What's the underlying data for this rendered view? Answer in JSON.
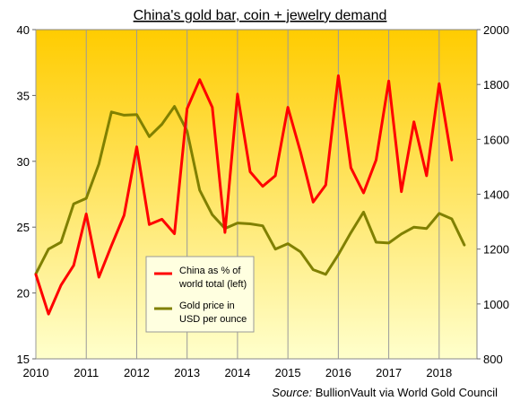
{
  "chart_data": {
    "type": "line",
    "title": "China's gold bar, coin + jewelry demand",
    "x_axis": {
      "ticks": [
        "2010",
        "2011",
        "2012",
        "2013",
        "2014",
        "2015",
        "2016",
        "2017",
        "2018"
      ],
      "range": [
        2010.0,
        2018.75
      ]
    },
    "y_left": {
      "range": [
        15,
        40
      ],
      "ticks": [
        "15",
        "20",
        "25",
        "30",
        "35",
        "40"
      ]
    },
    "y_right": {
      "range": [
        800,
        2000
      ],
      "ticks": [
        "800",
        "1000",
        "1200",
        "1400",
        "1600",
        "1800",
        "2000"
      ]
    },
    "series": [
      {
        "name": "China as % of world total (left)",
        "axis": "left",
        "color": "#ff0000",
        "x": [
          2010.0,
          2010.25,
          2010.5,
          2010.75,
          2011.0,
          2011.25,
          2011.5,
          2011.75,
          2012.0,
          2012.25,
          2012.5,
          2012.75,
          2013.0,
          2013.25,
          2013.5,
          2013.75,
          2014.0,
          2014.25,
          2014.5,
          2014.75,
          2015.0,
          2015.25,
          2015.5,
          2015.75,
          2016.0,
          2016.25,
          2016.5,
          2016.75,
          2017.0,
          2017.25,
          2017.5,
          2017.75,
          2018.0,
          2018.25
        ],
        "values": [
          21.4,
          18.4,
          20.6,
          22.1,
          26.0,
          21.2,
          23.6,
          25.9,
          31.1,
          25.2,
          25.6,
          24.5,
          34.0,
          36.2,
          34.1,
          24.6,
          35.1,
          29.2,
          28.1,
          28.9,
          34.1,
          30.7,
          26.9,
          28.2,
          36.5,
          29.5,
          27.6,
          30.1,
          36.1,
          27.7,
          33.0,
          28.9,
          35.9,
          30.1
        ]
      },
      {
        "name": "Gold price in USD per ounce",
        "axis": "right",
        "color": "#808000",
        "x": [
          2010.0,
          2010.25,
          2010.5,
          2010.75,
          2011.0,
          2011.25,
          2011.5,
          2011.75,
          2012.0,
          2012.25,
          2012.5,
          2012.75,
          2013.0,
          2013.25,
          2013.5,
          2013.75,
          2014.0,
          2014.25,
          2014.5,
          2014.75,
          2015.0,
          2015.25,
          2015.5,
          2015.75,
          2016.0,
          2016.25,
          2016.5,
          2016.75,
          2017.0,
          2017.25,
          2017.5,
          2017.75,
          2018.0,
          2018.25,
          2018.5
        ],
        "values": [
          1110,
          1200,
          1225,
          1365,
          1385,
          1510,
          1700,
          1688,
          1690,
          1610,
          1655,
          1720,
          1630,
          1415,
          1325,
          1275,
          1295,
          1292,
          1285,
          1200,
          1220,
          1190,
          1125,
          1108,
          1180,
          1260,
          1335,
          1225,
          1222,
          1255,
          1280,
          1275,
          1330,
          1310,
          1215
        ]
      }
    ],
    "legend": {
      "position": "center-left"
    },
    "grid": {
      "x": true,
      "y": false
    },
    "background": {
      "top_color": "#ffcc00",
      "bottom_color": "#ffffcc"
    }
  },
  "source": {
    "label": "Source:",
    "text": " BullionVault via World Gold Council"
  }
}
